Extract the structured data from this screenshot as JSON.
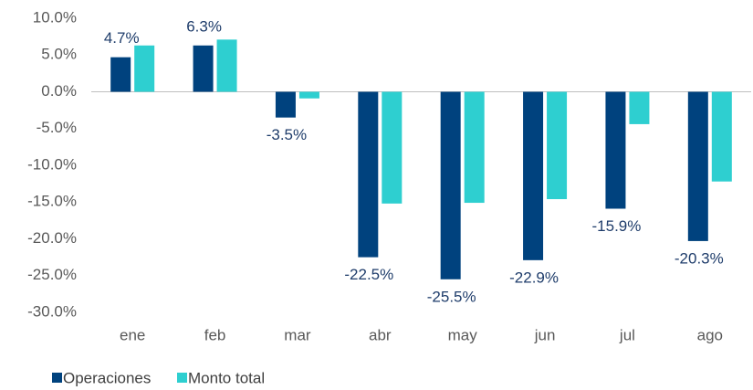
{
  "chart_data": {
    "type": "bar",
    "categories": [
      "ene",
      "feb",
      "mar",
      "abr",
      "may",
      "jun",
      "jul",
      "ago"
    ],
    "series": [
      {
        "name": "Operaciones",
        "color": "#00427e",
        "values": [
          4.7,
          6.3,
          -3.5,
          -22.5,
          -25.5,
          -22.9,
          -15.9,
          -20.3
        ],
        "value_labels": [
          "4.7%",
          "6.3%",
          "-3.5%",
          "-22.5%",
          "-25.5%",
          "-22.9%",
          "-15.9%",
          "-20.3%"
        ]
      },
      {
        "name": "Monto total",
        "color": "#2ecfd0",
        "values": [
          6.3,
          7.1,
          -0.9,
          -15.2,
          -15.1,
          -14.6,
          -4.4,
          -12.2
        ]
      }
    ],
    "ylim": [
      -30,
      10
    ],
    "yticks": [
      {
        "value": 10,
        "label": "10.0%"
      },
      {
        "value": 5,
        "label": "5.0%"
      },
      {
        "value": 0,
        "label": "0.0%"
      },
      {
        "value": -5,
        "label": "-5.0%"
      },
      {
        "value": -10,
        "label": "-10.0%"
      },
      {
        "value": -15,
        "label": "-15.0%"
      },
      {
        "value": -20,
        "label": "-20.0%"
      },
      {
        "value": -25,
        "label": "-25.0%"
      },
      {
        "value": -30,
        "label": "-30.0%"
      }
    ],
    "grid": false,
    "legend": "bottom-left"
  }
}
